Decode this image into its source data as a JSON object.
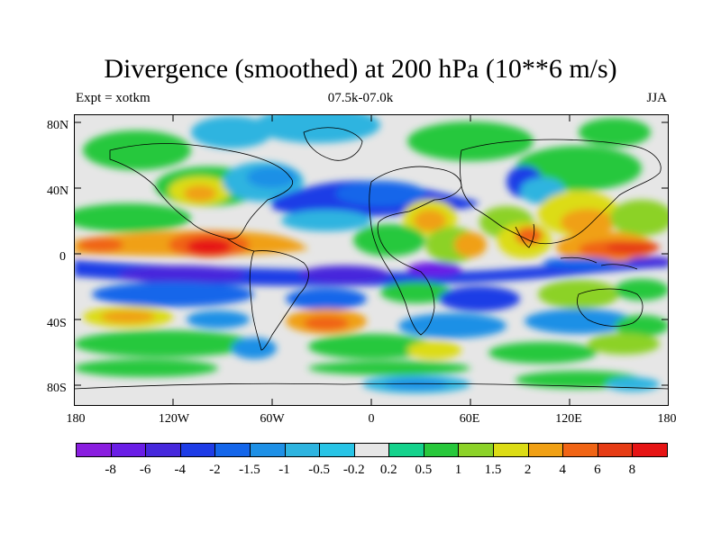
{
  "title": "Divergence (smoothed) at 200 hPa (10**6 m/s)",
  "subtitle_left": "Expt = xotkm",
  "subtitle_center": "07.5k-07.0k",
  "subtitle_right": "JJA",
  "lat_labels": [
    "80N",
    "40N",
    "0",
    "40S",
    "80S"
  ],
  "lat_values": [
    80,
    40,
    0,
    -40,
    -80
  ],
  "lon_labels": [
    "180",
    "120W",
    "60W",
    "0",
    "60E",
    "120E",
    "180"
  ],
  "lon_values": [
    -180,
    -120,
    -60,
    0,
    60,
    120,
    180
  ],
  "colorbar": {
    "labels": [
      "-8",
      "-6",
      "-4",
      "-2",
      "-1.5",
      "-1",
      "-0.5",
      "-0.2",
      "0.2",
      "0.5",
      "1",
      "1.5",
      "2",
      "4",
      "6",
      "8"
    ],
    "colors": [
      "#8a1ee0",
      "#6a1ee6",
      "#4628dc",
      "#1e3ce6",
      "#1466ea",
      "#1e90e6",
      "#2eb4e0",
      "#28c4e6",
      "#e6e6e6",
      "#14d28c",
      "#28c83c",
      "#8cd228",
      "#dcdc14",
      "#f0a014",
      "#f06414",
      "#e63c14",
      "#e61414"
    ]
  },
  "map": {
    "background_value_color": "#e6e6e6",
    "fields": [
      {
        "name": "itcz-convergence-band",
        "lon": -100,
        "lat": 5,
        "value": 8,
        "color": "#e61414"
      },
      {
        "name": "west-pacific-divergence",
        "lon": 140,
        "lat": 8,
        "value": 6,
        "color": "#f06414"
      },
      {
        "name": "south-pacific-convergence",
        "lon": -140,
        "lat": -18,
        "value": -6,
        "color": "#4628dc"
      },
      {
        "name": "equatorial-atlantic-convergence",
        "lon": -20,
        "lat": -10,
        "value": -8,
        "color": "#6a1ee6"
      },
      {
        "name": "north-atlantic-convergence",
        "lon": -30,
        "lat": 30,
        "value": -2,
        "color": "#1e3ce6"
      },
      {
        "name": "africa-divergence",
        "lon": 20,
        "lat": 10,
        "value": 4,
        "color": "#f0a014"
      },
      {
        "name": "asia-divergence",
        "lon": 90,
        "lat": 20,
        "value": 4,
        "color": "#f0a014"
      },
      {
        "name": "indian-ocean-convergence",
        "lon": 70,
        "lat": -15,
        "value": -2,
        "color": "#1e3ce6"
      }
    ]
  }
}
